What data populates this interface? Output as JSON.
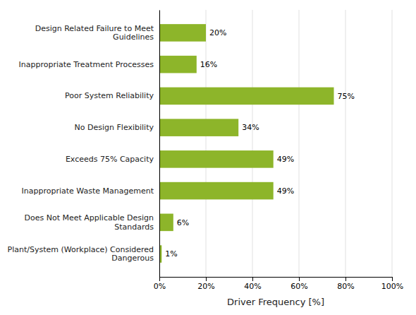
{
  "chart_data": {
    "type": "bar",
    "orientation": "horizontal",
    "categories": [
      "Plant/System (Workplace) Considered\nDangerous",
      "Does Not Meet Applicable Design\nStandards",
      "Inappropriate Waste Management",
      "Exceeds 75% Capacity",
      "No Design Flexibility",
      "Poor System Reliability",
      "Inappropriate Treatment Processes",
      "Design Related Failure to Meet\nGuidelines"
    ],
    "values": [
      1,
      6,
      49,
      49,
      34,
      75,
      16,
      20
    ],
    "value_labels": [
      "1%",
      "6%",
      "49%",
      "49%",
      "34%",
      "75%",
      "16%",
      "20%"
    ],
    "data_labels": true,
    "color": "#8db52a",
    "xlabel": "Driver Frequency [%]",
    "xlim": [
      0,
      100
    ],
    "xticks": [
      {
        "value": 0,
        "label": "0%"
      },
      {
        "value": 20,
        "label": "20%"
      },
      {
        "value": 40,
        "label": "40%"
      },
      {
        "value": 60,
        "label": "60%"
      },
      {
        "value": 80,
        "label": "80%"
      },
      {
        "value": 100,
        "label": "100%"
      }
    ],
    "grid": true
  }
}
